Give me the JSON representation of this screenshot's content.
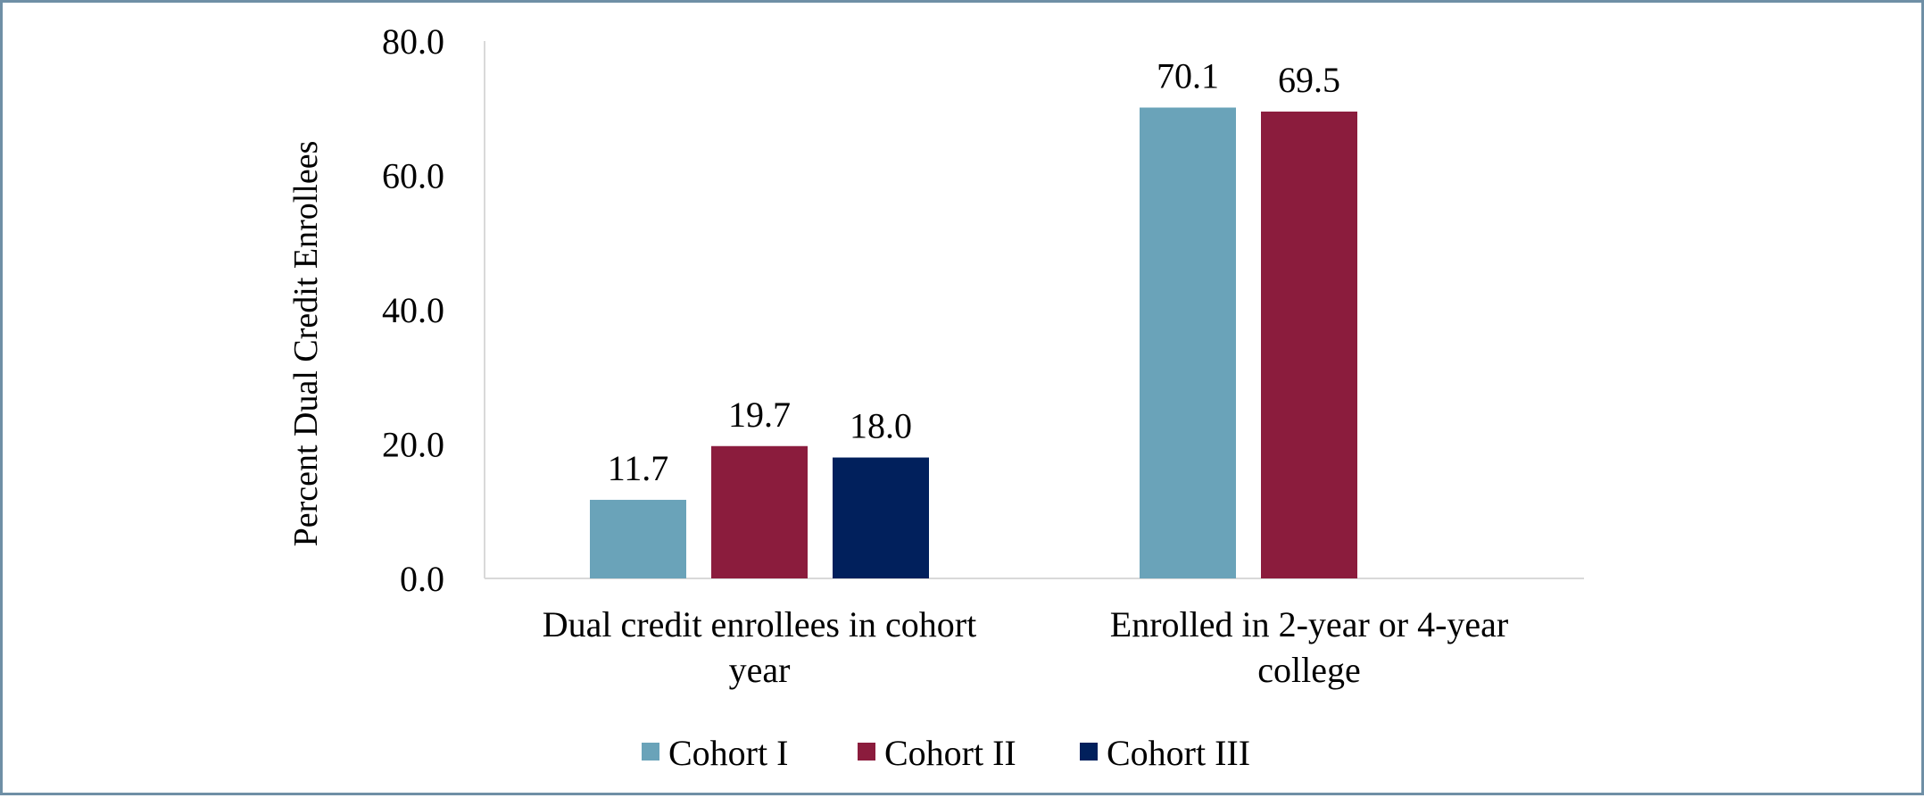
{
  "chart_data": {
    "type": "bar",
    "categories": [
      [
        "Dual credit enrollees in cohort",
        "year"
      ],
      [
        "Enrolled in 2-year or 4-year",
        "college"
      ]
    ],
    "series": [
      {
        "name": "Cohort I",
        "color": "#6aa3b9",
        "values": [
          11.7,
          70.1
        ],
        "labels": [
          "11.7",
          "70.1"
        ]
      },
      {
        "name": "Cohort II",
        "color": "#8b1c3d",
        "values": [
          19.7,
          69.5
        ],
        "labels": [
          "19.7",
          "69.5"
        ]
      },
      {
        "name": "Cohort III",
        "color": "#01205c",
        "values": [
          18.0,
          null
        ],
        "labels": [
          "18.0",
          ""
        ]
      }
    ],
    "ylabel": "Percent Dual Credit Enrollees",
    "xlabel": "",
    "ylim": [
      0,
      80
    ],
    "yticks": [
      "0.0",
      "20.0",
      "40.0",
      "60.0",
      "80.0"
    ],
    "ytick_values": [
      0,
      20,
      40,
      60,
      80
    ],
    "grid": false,
    "legend_position": "bottom"
  }
}
